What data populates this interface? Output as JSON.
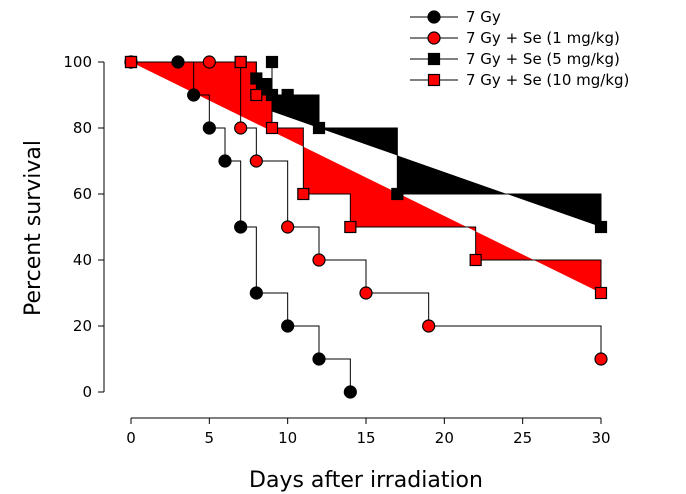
{
  "chart_data": {
    "type": "line",
    "xlabel": "Days after irradiation",
    "ylabel": "Percent survival",
    "xlim": [
      0,
      30
    ],
    "ylim": [
      0,
      100
    ],
    "x_ticks": [
      0,
      5,
      10,
      15,
      20,
      25,
      30
    ],
    "y_ticks": [
      0,
      20,
      40,
      60,
      80,
      100
    ],
    "grid": false,
    "legend_position": "top-right",
    "series": [
      {
        "name": "7 Gy",
        "marker": "circle",
        "marker_color": "#000000",
        "points": [
          [
            0,
            100
          ],
          [
            3,
            100
          ],
          [
            4,
            90
          ],
          [
            5,
            80
          ],
          [
            6,
            70
          ],
          [
            7,
            50
          ],
          [
            8,
            30
          ],
          [
            10,
            20
          ],
          [
            12,
            10
          ],
          [
            14,
            0
          ]
        ]
      },
      {
        "name": "7 Gy + Se (1 mg/kg)",
        "marker": "circle",
        "marker_color": "#ff0000",
        "points": [
          [
            0,
            100
          ],
          [
            5,
            100
          ],
          [
            7,
            80
          ],
          [
            8,
            70
          ],
          [
            10,
            50
          ],
          [
            12,
            40
          ],
          [
            15,
            30
          ],
          [
            19,
            20
          ],
          [
            30,
            10
          ]
        ]
      },
      {
        "name": "7 Gy + Se (5 mg/kg)",
        "marker": "square",
        "marker_color": "#000000",
        "fill_color": "#000000",
        "points": [
          [
            0,
            100
          ],
          [
            7,
            100
          ],
          [
            8,
            95
          ],
          [
            9,
            100
          ],
          [
            9,
            90
          ],
          [
            10,
            90
          ],
          [
            12,
            80
          ],
          [
            17,
            60
          ],
          [
            30,
            50
          ]
        ]
      },
      {
        "name": "7 Gy + Se (10 mg/kg)",
        "marker": "square",
        "marker_color": "#ff0000",
        "fill_color": "#ff0000",
        "points": [
          [
            0,
            100
          ],
          [
            7,
            100
          ],
          [
            8,
            90
          ],
          [
            9,
            80
          ],
          [
            11,
            60
          ],
          [
            14,
            50
          ],
          [
            22,
            40
          ],
          [
            30,
            30
          ]
        ]
      }
    ]
  }
}
